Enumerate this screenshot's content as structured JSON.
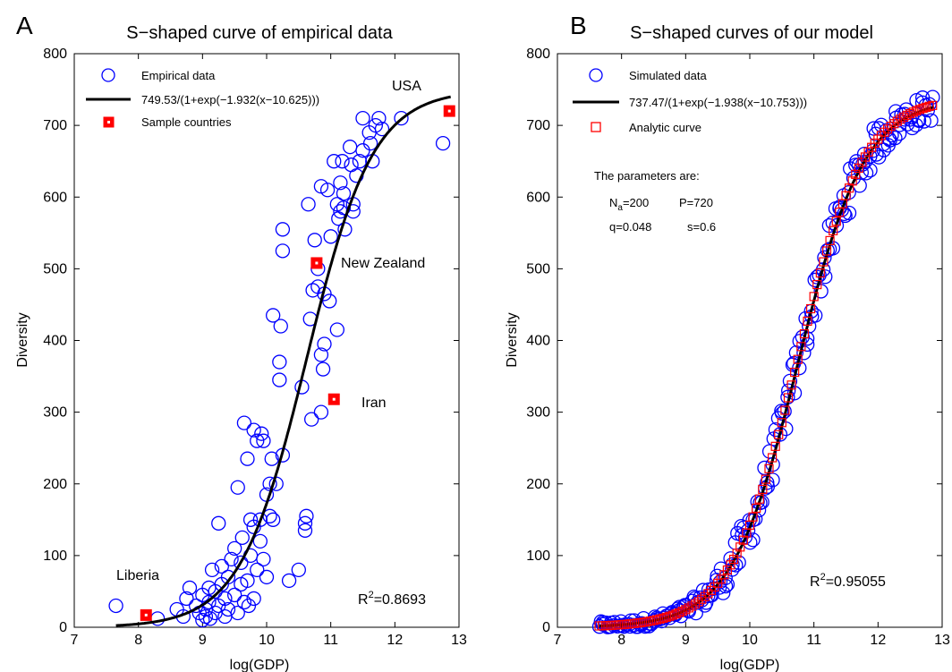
{
  "chart_data": [
    {
      "panel_label": "A",
      "type": "scatter",
      "title": "S−shaped curve of empirical data",
      "xlabel": "log(GDP)",
      "ylabel": "Diversity",
      "xlim": [
        7,
        13
      ],
      "ylim": [
        0,
        800
      ],
      "xticks": [
        "7",
        "8",
        "9",
        "10",
        "11",
        "12",
        "13"
      ],
      "yticks": [
        "0",
        "100",
        "200",
        "300",
        "400",
        "500",
        "600",
        "700",
        "800"
      ],
      "grid": false,
      "legend_position": "top-left",
      "legend": [
        "Empirical data",
        "749.53/(1+exp(−1.932(x−10.625)))",
        "Sample countries"
      ],
      "r2_prefix": "R",
      "r2_sup": "2",
      "r2_value": "=0.8693",
      "curve_params": {
        "L": 749.53,
        "k": 1.932,
        "x0": 10.625
      },
      "series": [
        {
          "name": "Empirical data",
          "points": [
            [
              7.65,
              30
            ],
            [
              8.3,
              12
            ],
            [
              8.6,
              25
            ],
            [
              8.7,
              15
            ],
            [
              8.75,
              40
            ],
            [
              8.8,
              55
            ],
            [
              8.9,
              30
            ],
            [
              8.95,
              20
            ],
            [
              9.0,
              10
            ],
            [
              9.0,
              45
            ],
            [
              9.05,
              15
            ],
            [
              9.05,
              25
            ],
            [
              9.1,
              35
            ],
            [
              9.1,
              55
            ],
            [
              9.12,
              12
            ],
            [
              9.15,
              80
            ],
            [
              9.2,
              20
            ],
            [
              9.2,
              50
            ],
            [
              9.25,
              30
            ],
            [
              9.25,
              145
            ],
            [
              9.3,
              60
            ],
            [
              9.3,
              85
            ],
            [
              9.35,
              15
            ],
            [
              9.35,
              40
            ],
            [
              9.4,
              25
            ],
            [
              9.4,
              70
            ],
            [
              9.45,
              95
            ],
            [
              9.5,
              45
            ],
            [
              9.5,
              110
            ],
            [
              9.55,
              20
            ],
            [
              9.55,
              195
            ],
            [
              9.6,
              60
            ],
            [
              9.6,
              90
            ],
            [
              9.62,
              125
            ],
            [
              9.65,
              35
            ],
            [
              9.65,
              285
            ],
            [
              9.7,
              65
            ],
            [
              9.7,
              235
            ],
            [
              9.72,
              30
            ],
            [
              9.75,
              100
            ],
            [
              9.75,
              150
            ],
            [
              9.8,
              40
            ],
            [
              9.8,
              140
            ],
            [
              9.8,
              275
            ],
            [
              9.85,
              80
            ],
            [
              9.85,
              260
            ],
            [
              9.9,
              120
            ],
            [
              9.9,
              150
            ],
            [
              9.92,
              270
            ],
            [
              9.95,
              95
            ],
            [
              9.95,
              260
            ],
            [
              10.0,
              185
            ],
            [
              10.0,
              70
            ],
            [
              10.05,
              200
            ],
            [
              10.05,
              155
            ],
            [
              10.08,
              235
            ],
            [
              10.1,
              150
            ],
            [
              10.1,
              435
            ],
            [
              10.15,
              200
            ],
            [
              10.2,
              370
            ],
            [
              10.2,
              345
            ],
            [
              10.22,
              420
            ],
            [
              10.25,
              555
            ],
            [
              10.25,
              525
            ],
            [
              10.25,
              240
            ],
            [
              10.35,
              65
            ],
            [
              10.5,
              80
            ],
            [
              10.55,
              335
            ],
            [
              10.6,
              145
            ],
            [
              10.6,
              135
            ],
            [
              10.62,
              155
            ],
            [
              10.65,
              590
            ],
            [
              10.68,
              430
            ],
            [
              10.7,
              290
            ],
            [
              10.72,
              470
            ],
            [
              10.75,
              540
            ],
            [
              10.8,
              500
            ],
            [
              10.8,
              475
            ],
            [
              10.85,
              615
            ],
            [
              10.85,
              380
            ],
            [
              10.85,
              300
            ],
            [
              10.88,
              360
            ],
            [
              10.9,
              465
            ],
            [
              10.9,
              395
            ],
            [
              10.95,
              610
            ],
            [
              10.98,
              455
            ],
            [
              11.0,
              545
            ],
            [
              11.05,
              650
            ],
            [
              11.1,
              590
            ],
            [
              11.1,
              415
            ],
            [
              11.12,
              570
            ],
            [
              11.15,
              620
            ],
            [
              11.15,
              580
            ],
            [
              11.18,
              650
            ],
            [
              11.2,
              605
            ],
            [
              11.2,
              585
            ],
            [
              11.22,
              555
            ],
            [
              11.3,
              670
            ],
            [
              11.32,
              645
            ],
            [
              11.35,
              590
            ],
            [
              11.35,
              580
            ],
            [
              11.4,
              630
            ],
            [
              11.45,
              650
            ],
            [
              11.5,
              710
            ],
            [
              11.5,
              665
            ],
            [
              11.6,
              690
            ],
            [
              11.62,
              675
            ],
            [
              11.65,
              650
            ],
            [
              11.7,
              700
            ],
            [
              11.75,
              710
            ],
            [
              11.8,
              695
            ],
            [
              12.1,
              710
            ],
            [
              12.75,
              675
            ]
          ]
        },
        {
          "name": "Sample countries",
          "points": [
            [
              8.12,
              17
            ],
            [
              10.78,
              508
            ],
            [
              11.05,
              318
            ],
            [
              12.85,
              720
            ]
          ],
          "labels": [
            "Liberia",
            "New Zealand",
            "Iran",
            "USA"
          ]
        }
      ]
    },
    {
      "panel_label": "B",
      "type": "scatter",
      "title": "S−shaped curves of our model",
      "xlabel": "log(GDP)",
      "ylabel": "Diversity",
      "xlim": [
        7,
        13
      ],
      "ylim": [
        0,
        800
      ],
      "xticks": [
        "7",
        "8",
        "9",
        "10",
        "11",
        "12",
        "13"
      ],
      "yticks": [
        "0",
        "100",
        "200",
        "300",
        "400",
        "500",
        "600",
        "700",
        "800"
      ],
      "grid": false,
      "legend_position": "top-left",
      "legend": [
        "Simulated data",
        "737.47/(1+exp(−1.938(x−10.753)))",
        "Analytic curve"
      ],
      "params_title": "The parameters are:",
      "params_line1": {
        "n": "N",
        "n_sub": "a",
        "n_val": "=200",
        "p": "P=720"
      },
      "params_line2": {
        "q": "q=0.048",
        "s": "s=0.6"
      },
      "r2_prefix": "R",
      "r2_sup": "2",
      "r2_value": "=0.95055",
      "curve_params": {
        "L": 737.47,
        "k": 1.938,
        "x0": 10.753
      },
      "series": [
        {
          "name": "Simulated data",
          "x_range": [
            7.65,
            12.85
          ],
          "count": 210,
          "noise_amplitude": 30
        },
        {
          "name": "Analytic curve",
          "x_range": [
            7.65,
            12.85
          ],
          "step": 0.05
        }
      ]
    }
  ]
}
